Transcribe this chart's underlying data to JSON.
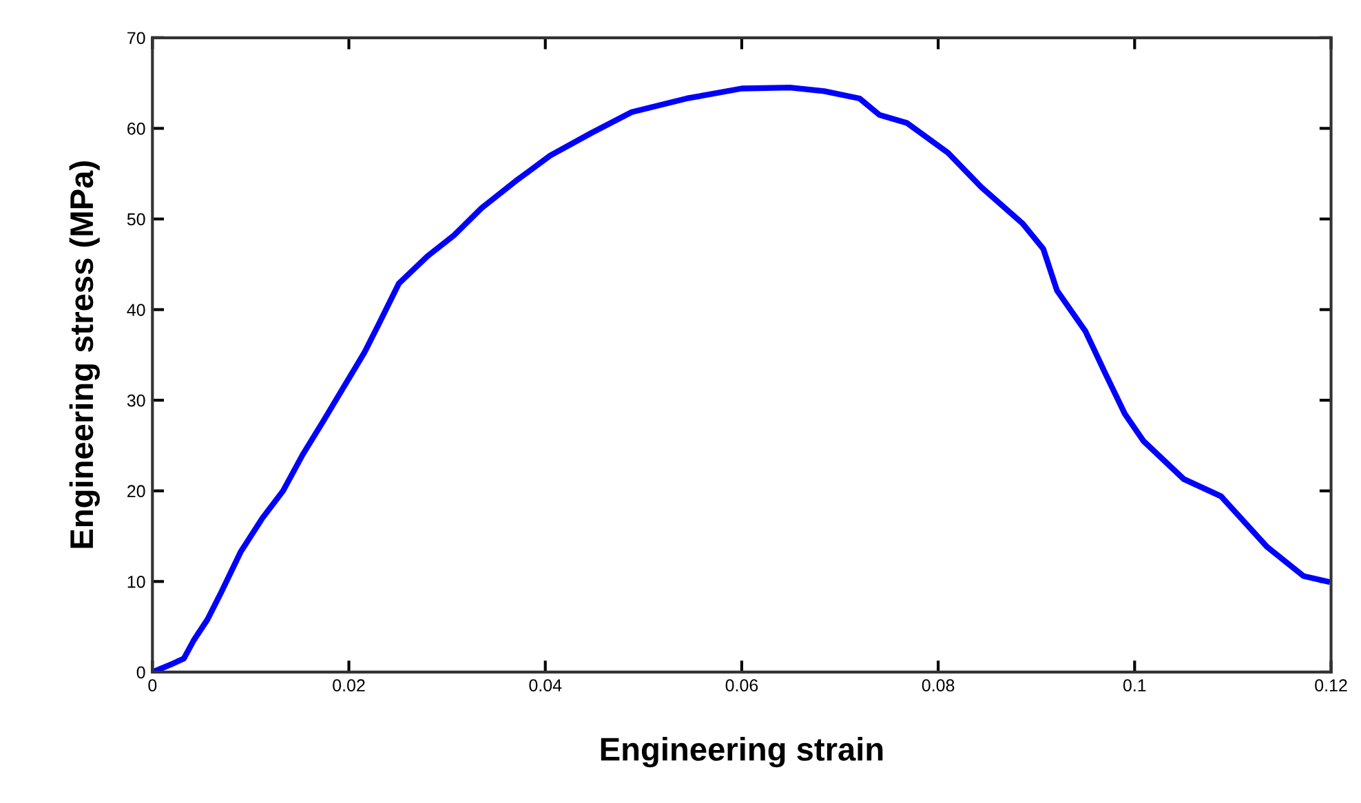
{
  "chart_data": {
    "type": "line",
    "xlabel": "Engineering strain",
    "ylabel": "Engineering stress (MPa)",
    "xlim": [
      0,
      0.12
    ],
    "ylim": [
      0,
      70
    ],
    "xticks": [
      0,
      0.02,
      0.04,
      0.06,
      0.08,
      0.1,
      0.12
    ],
    "yticks": [
      0,
      10,
      20,
      30,
      40,
      50,
      60,
      70
    ],
    "grid": false,
    "legend": false,
    "marker": "none",
    "line_style": "solid",
    "series": [
      {
        "color": "#0000ff",
        "x": [
          0,
          0.002,
          0.0032,
          0.0042,
          0.0056,
          0.007,
          0.009,
          0.0112,
          0.0133,
          0.0153,
          0.0174,
          0.0195,
          0.0216,
          0.023,
          0.0251,
          0.028,
          0.0307,
          0.0335,
          0.037,
          0.0405,
          0.0447,
          0.0488,
          0.0544,
          0.06,
          0.0649,
          0.0684,
          0.072,
          0.074,
          0.0768,
          0.081,
          0.0844,
          0.0886,
          0.0907,
          0.0921,
          0.095,
          0.097,
          0.099,
          0.1009,
          0.105,
          0.1088,
          0.1135,
          0.1172,
          0.1196
        ],
        "values": [
          0,
          0.9,
          1.5,
          3.5,
          5.8,
          8.8,
          13.3,
          17,
          20,
          24,
          27.7,
          31.5,
          35.3,
          38.3,
          42.9,
          45.9,
          48.2,
          51.2,
          54.2,
          57,
          59.5,
          61.8,
          63.3,
          64.4,
          64.5,
          64.1,
          63.3,
          61.5,
          60.6,
          57.3,
          53.5,
          49.5,
          46.7,
          42.1,
          37.6,
          33,
          28.5,
          25.5,
          21.3,
          19.4,
          13.8,
          10.6,
          10
        ]
      }
    ]
  }
}
